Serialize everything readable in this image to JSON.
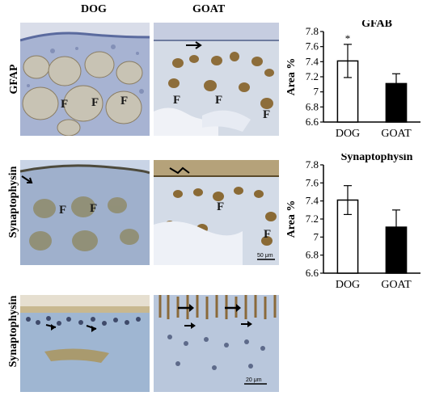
{
  "columns": {
    "dog": "DOG",
    "goat": "GOAT"
  },
  "rows": {
    "r1": "GFAP",
    "r2": "Synaptophysin",
    "r3": "Synaptophysin"
  },
  "panel_labels": {
    "f": "F"
  },
  "scale_bars": {
    "mid": "50 μm",
    "bottom": "20 μm"
  },
  "chart_data": [
    {
      "type": "bar",
      "title": "GFAB",
      "ylabel": "Area %",
      "categories": [
        "DOG",
        "GOAT"
      ],
      "values": [
        7.41,
        7.11
      ],
      "errors": [
        0.22,
        0.13
      ],
      "colors": [
        "#ffffff",
        "#000000"
      ],
      "ylim": [
        6.6,
        7.8
      ],
      "yticks": [
        "6.6",
        "6.8",
        "7",
        "7.2",
        "7.4",
        "7.6",
        "7.8"
      ],
      "annotation": "*"
    },
    {
      "type": "bar",
      "title": "Synaptophysin",
      "ylabel": "Area %",
      "categories": [
        "DOG",
        "GOAT"
      ],
      "values": [
        7.41,
        7.11
      ],
      "errors": [
        0.16,
        0.19
      ],
      "colors": [
        "#ffffff",
        "#000000"
      ],
      "ylim": [
        6.6,
        7.8
      ],
      "yticks": [
        "6.6",
        "6.8",
        "7",
        "7.2",
        "7.4",
        "7.6",
        "7.8"
      ]
    }
  ]
}
